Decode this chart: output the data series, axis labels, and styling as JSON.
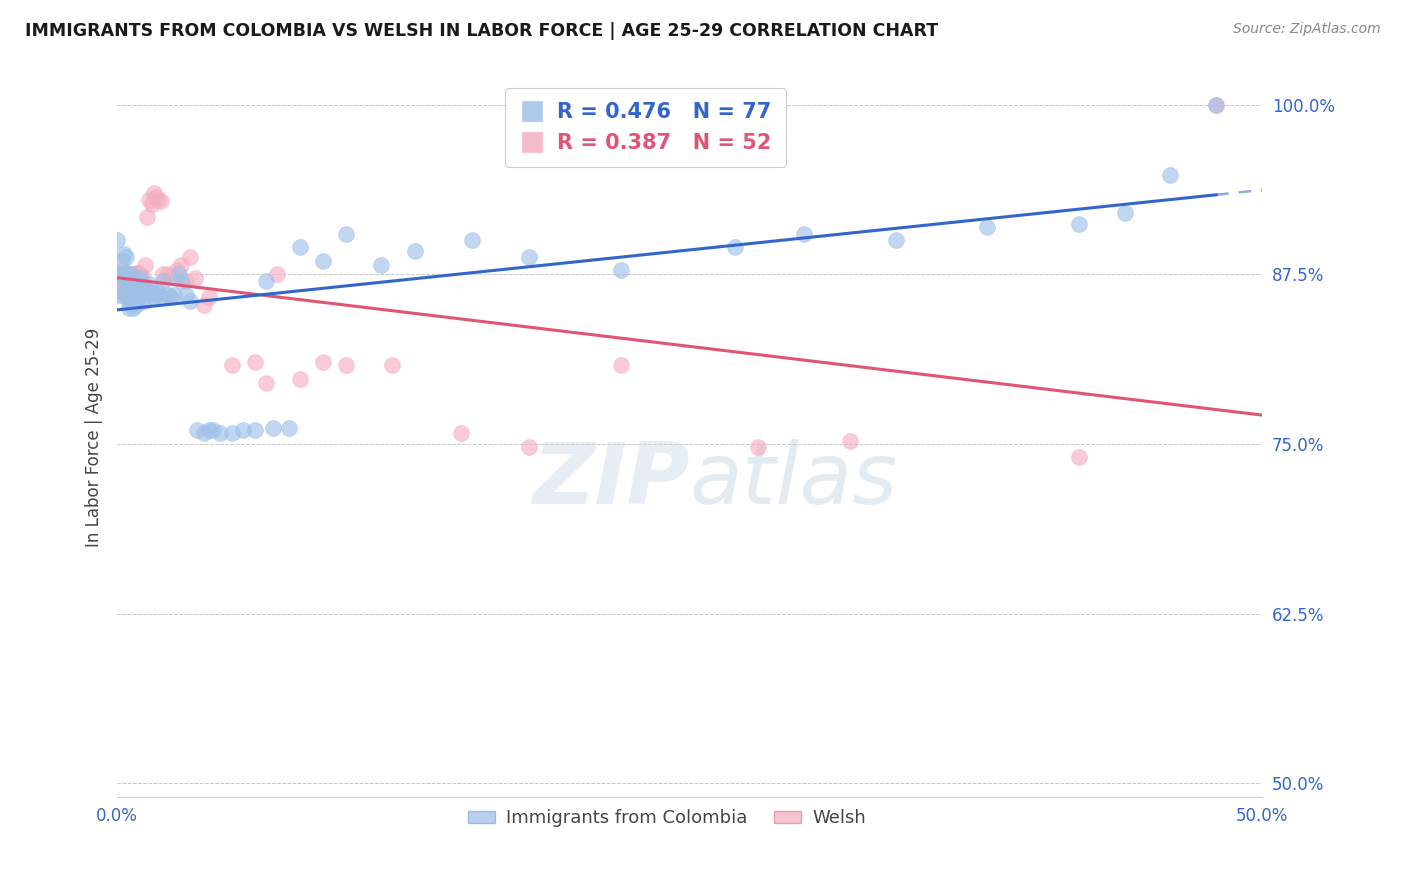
{
  "title": "IMMIGRANTS FROM COLOMBIA VS WELSH IN LABOR FORCE | AGE 25-29 CORRELATION CHART",
  "source": "Source: ZipAtlas.com",
  "ylabel": "In Labor Force | Age 25-29",
  "xlim": [
    0.0,
    0.5
  ],
  "ylim": [
    0.49,
    1.02
  ],
  "colombia_R": 0.476,
  "colombia_N": 77,
  "welsh_R": 0.387,
  "welsh_N": 52,
  "colombia_color": "#a0c0e8",
  "welsh_color": "#f5afc0",
  "colombia_line_color": "#3366cc",
  "welsh_line_color": "#e05575",
  "colombia_scatter_x": [
    0.0,
    0.0,
    0.001,
    0.001,
    0.002,
    0.002,
    0.002,
    0.003,
    0.003,
    0.003,
    0.003,
    0.004,
    0.004,
    0.004,
    0.005,
    0.005,
    0.005,
    0.005,
    0.006,
    0.006,
    0.006,
    0.007,
    0.007,
    0.007,
    0.008,
    0.008,
    0.008,
    0.009,
    0.009,
    0.01,
    0.01,
    0.011,
    0.011,
    0.012,
    0.012,
    0.013,
    0.014,
    0.015,
    0.016,
    0.017,
    0.018,
    0.019,
    0.02,
    0.022,
    0.023,
    0.025,
    0.027,
    0.028,
    0.03,
    0.032,
    0.035,
    0.038,
    0.04,
    0.042,
    0.045,
    0.05,
    0.055,
    0.06,
    0.065,
    0.068,
    0.075,
    0.08,
    0.09,
    0.1,
    0.115,
    0.13,
    0.155,
    0.18,
    0.22,
    0.27,
    0.3,
    0.34,
    0.38,
    0.42,
    0.44,
    0.46,
    0.48
  ],
  "colombia_scatter_y": [
    0.9,
    0.875,
    0.875,
    0.86,
    0.885,
    0.875,
    0.86,
    0.89,
    0.875,
    0.87,
    0.862,
    0.888,
    0.872,
    0.86,
    0.875,
    0.868,
    0.855,
    0.85,
    0.875,
    0.87,
    0.855,
    0.87,
    0.862,
    0.85,
    0.87,
    0.86,
    0.852,
    0.868,
    0.858,
    0.872,
    0.86,
    0.868,
    0.855,
    0.865,
    0.855,
    0.862,
    0.868,
    0.862,
    0.858,
    0.86,
    0.862,
    0.858,
    0.87,
    0.86,
    0.858,
    0.86,
    0.875,
    0.87,
    0.86,
    0.855,
    0.76,
    0.758,
    0.76,
    0.76,
    0.758,
    0.758,
    0.76,
    0.76,
    0.87,
    0.762,
    0.762,
    0.895,
    0.885,
    0.905,
    0.882,
    0.892,
    0.9,
    0.888,
    0.878,
    0.895,
    0.905,
    0.9,
    0.91,
    0.912,
    0.92,
    0.948,
    1.0
  ],
  "welsh_scatter_x": [
    0.0,
    0.001,
    0.001,
    0.002,
    0.002,
    0.003,
    0.003,
    0.004,
    0.004,
    0.005,
    0.005,
    0.006,
    0.007,
    0.007,
    0.008,
    0.008,
    0.009,
    0.01,
    0.011,
    0.012,
    0.013,
    0.014,
    0.015,
    0.016,
    0.017,
    0.018,
    0.019,
    0.02,
    0.022,
    0.024,
    0.026,
    0.028,
    0.03,
    0.032,
    0.034,
    0.038,
    0.04,
    0.05,
    0.06,
    0.065,
    0.07,
    0.08,
    0.09,
    0.1,
    0.12,
    0.15,
    0.18,
    0.22,
    0.28,
    0.32,
    0.42,
    0.48
  ],
  "welsh_scatter_y": [
    0.872,
    0.874,
    0.865,
    0.878,
    0.865,
    0.875,
    0.87,
    0.87,
    0.862,
    0.875,
    0.865,
    0.873,
    0.87,
    0.862,
    0.872,
    0.876,
    0.876,
    0.875,
    0.874,
    0.882,
    0.917,
    0.93,
    0.927,
    0.935,
    0.932,
    0.93,
    0.929,
    0.875,
    0.875,
    0.873,
    0.878,
    0.882,
    0.87,
    0.888,
    0.872,
    0.852,
    0.858,
    0.808,
    0.81,
    0.795,
    0.875,
    0.798,
    0.81,
    0.808,
    0.808,
    0.758,
    0.748,
    0.808,
    0.748,
    0.752,
    0.74,
    1.0
  ],
  "ytick_values": [
    0.5,
    0.625,
    0.75,
    0.875,
    1.0
  ],
  "ytick_labels": [
    "50.0%",
    "62.5%",
    "75.0%",
    "87.5%",
    "100.0%"
  ],
  "watermark": "ZIPatlas",
  "watermark_color": "#ccdff0"
}
